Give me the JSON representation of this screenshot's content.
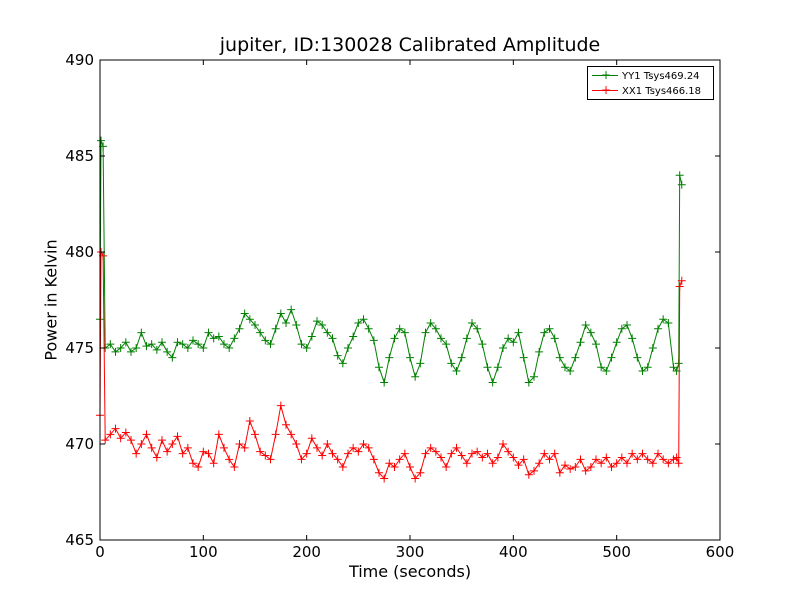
{
  "chart_data": {
    "type": "line",
    "title": "jupiter, ID:130028 Calibrated Amplitude",
    "xlabel": "Time (seconds)",
    "ylabel": "Power in Kelvin",
    "xlim": [
      0,
      600
    ],
    "ylim": [
      465,
      490
    ],
    "xticks": [
      "0",
      "100",
      "200",
      "300",
      "400",
      "500",
      "600"
    ],
    "yticks": [
      "465",
      "470",
      "475",
      "480",
      "485",
      "490"
    ],
    "grid": false,
    "legend_position": "top-right",
    "marker": "+",
    "series": [
      {
        "name": "YY1 Tsys469.24",
        "color": "#008000",
        "points": [
          [
            0,
            476.5
          ],
          [
            1,
            485.8
          ],
          [
            3,
            485.5
          ],
          [
            5,
            475.0
          ],
          [
            10,
            475.2
          ],
          [
            15,
            474.8
          ],
          [
            20,
            475.0
          ],
          [
            25,
            475.3
          ],
          [
            30,
            474.8
          ],
          [
            35,
            475.0
          ],
          [
            40,
            475.8
          ],
          [
            45,
            475.1
          ],
          [
            50,
            475.2
          ],
          [
            55,
            474.9
          ],
          [
            60,
            475.3
          ],
          [
            65,
            474.8
          ],
          [
            70,
            474.5
          ],
          [
            75,
            475.3
          ],
          [
            80,
            475.2
          ],
          [
            85,
            475.0
          ],
          [
            90,
            475.4
          ],
          [
            95,
            475.2
          ],
          [
            100,
            475.0
          ],
          [
            105,
            475.8
          ],
          [
            110,
            475.5
          ],
          [
            115,
            475.6
          ],
          [
            120,
            475.2
          ],
          [
            125,
            475.0
          ],
          [
            130,
            475.5
          ],
          [
            135,
            476.0
          ],
          [
            140,
            476.8
          ],
          [
            145,
            476.5
          ],
          [
            150,
            476.2
          ],
          [
            155,
            475.8
          ],
          [
            160,
            475.4
          ],
          [
            165,
            475.2
          ],
          [
            170,
            476.0
          ],
          [
            175,
            476.8
          ],
          [
            180,
            476.3
          ],
          [
            185,
            477.0
          ],
          [
            190,
            476.2
          ],
          [
            195,
            475.2
          ],
          [
            200,
            475.0
          ],
          [
            205,
            475.6
          ],
          [
            210,
            476.4
          ],
          [
            215,
            476.2
          ],
          [
            220,
            475.8
          ],
          [
            225,
            475.5
          ],
          [
            230,
            474.6
          ],
          [
            235,
            474.2
          ],
          [
            240,
            475.0
          ],
          [
            245,
            475.6
          ],
          [
            250,
            476.3
          ],
          [
            255,
            476.5
          ],
          [
            260,
            476.0
          ],
          [
            265,
            475.4
          ],
          [
            270,
            474.0
          ],
          [
            275,
            473.2
          ],
          [
            280,
            474.5
          ],
          [
            285,
            475.5
          ],
          [
            290,
            476.0
          ],
          [
            295,
            475.8
          ],
          [
            300,
            474.5
          ],
          [
            305,
            473.5
          ],
          [
            310,
            474.2
          ],
          [
            315,
            475.8
          ],
          [
            320,
            476.3
          ],
          [
            325,
            476.0
          ],
          [
            330,
            475.5
          ],
          [
            335,
            475.2
          ],
          [
            340,
            474.2
          ],
          [
            345,
            473.8
          ],
          [
            350,
            474.5
          ],
          [
            355,
            475.5
          ],
          [
            360,
            476.3
          ],
          [
            365,
            476.0
          ],
          [
            370,
            475.2
          ],
          [
            375,
            474.0
          ],
          [
            380,
            473.2
          ],
          [
            385,
            474.0
          ],
          [
            390,
            475.0
          ],
          [
            395,
            475.5
          ],
          [
            400,
            475.3
          ],
          [
            405,
            475.8
          ],
          [
            410,
            474.5
          ],
          [
            415,
            473.2
          ],
          [
            420,
            473.5
          ],
          [
            425,
            474.8
          ],
          [
            430,
            475.8
          ],
          [
            435,
            476.0
          ],
          [
            440,
            475.5
          ],
          [
            445,
            474.5
          ],
          [
            450,
            474.0
          ],
          [
            455,
            473.8
          ],
          [
            460,
            474.5
          ],
          [
            465,
            475.3
          ],
          [
            470,
            476.2
          ],
          [
            475,
            475.8
          ],
          [
            480,
            475.2
          ],
          [
            485,
            474.0
          ],
          [
            490,
            473.8
          ],
          [
            495,
            474.5
          ],
          [
            500,
            475.3
          ],
          [
            505,
            476.0
          ],
          [
            510,
            476.2
          ],
          [
            515,
            475.5
          ],
          [
            520,
            474.5
          ],
          [
            525,
            473.8
          ],
          [
            530,
            474.0
          ],
          [
            535,
            475.0
          ],
          [
            540,
            476.0
          ],
          [
            545,
            476.5
          ],
          [
            550,
            476.3
          ],
          [
            555,
            474.0
          ],
          [
            558,
            473.8
          ],
          [
            560,
            474.2
          ],
          [
            561,
            484.0
          ],
          [
            563,
            483.5
          ]
        ]
      },
      {
        "name": "XX1 Tsys466.18",
        "color": "#ff0000",
        "points": [
          [
            0,
            471.5
          ],
          [
            1,
            480.0
          ],
          [
            3,
            479.8
          ],
          [
            5,
            470.2
          ],
          [
            10,
            470.5
          ],
          [
            15,
            470.8
          ],
          [
            20,
            470.3
          ],
          [
            25,
            470.6
          ],
          [
            30,
            470.2
          ],
          [
            35,
            469.5
          ],
          [
            40,
            470.0
          ],
          [
            45,
            470.5
          ],
          [
            50,
            469.8
          ],
          [
            55,
            469.3
          ],
          [
            60,
            470.2
          ],
          [
            65,
            469.6
          ],
          [
            70,
            470.0
          ],
          [
            75,
            470.4
          ],
          [
            80,
            469.5
          ],
          [
            85,
            469.8
          ],
          [
            90,
            469.0
          ],
          [
            95,
            468.8
          ],
          [
            100,
            469.6
          ],
          [
            105,
            469.5
          ],
          [
            110,
            469.0
          ],
          [
            115,
            470.5
          ],
          [
            120,
            469.8
          ],
          [
            125,
            469.2
          ],
          [
            130,
            468.8
          ],
          [
            135,
            470.0
          ],
          [
            140,
            469.8
          ],
          [
            145,
            471.2
          ],
          [
            150,
            470.5
          ],
          [
            155,
            469.6
          ],
          [
            160,
            469.4
          ],
          [
            165,
            469.2
          ],
          [
            170,
            470.5
          ],
          [
            175,
            472.0
          ],
          [
            180,
            471.0
          ],
          [
            185,
            470.5
          ],
          [
            190,
            470.0
          ],
          [
            195,
            469.2
          ],
          [
            200,
            469.5
          ],
          [
            205,
            470.3
          ],
          [
            210,
            469.8
          ],
          [
            215,
            469.4
          ],
          [
            220,
            470.0
          ],
          [
            225,
            469.5
          ],
          [
            230,
            469.2
          ],
          [
            235,
            468.8
          ],
          [
            240,
            469.5
          ],
          [
            245,
            469.8
          ],
          [
            250,
            469.6
          ],
          [
            255,
            470.0
          ],
          [
            260,
            469.8
          ],
          [
            265,
            469.2
          ],
          [
            270,
            468.5
          ],
          [
            275,
            468.2
          ],
          [
            280,
            469.0
          ],
          [
            285,
            468.8
          ],
          [
            290,
            469.2
          ],
          [
            295,
            469.5
          ],
          [
            300,
            468.8
          ],
          [
            305,
            468.2
          ],
          [
            310,
            468.5
          ],
          [
            315,
            469.5
          ],
          [
            320,
            469.8
          ],
          [
            325,
            469.6
          ],
          [
            330,
            469.3
          ],
          [
            335,
            468.8
          ],
          [
            340,
            469.5
          ],
          [
            345,
            469.8
          ],
          [
            350,
            469.4
          ],
          [
            355,
            469.0
          ],
          [
            360,
            469.5
          ],
          [
            365,
            469.6
          ],
          [
            370,
            469.3
          ],
          [
            375,
            469.5
          ],
          [
            380,
            469.0
          ],
          [
            385,
            469.3
          ],
          [
            390,
            470.0
          ],
          [
            395,
            469.6
          ],
          [
            400,
            469.3
          ],
          [
            405,
            468.9
          ],
          [
            410,
            469.2
          ],
          [
            415,
            468.4
          ],
          [
            420,
            468.6
          ],
          [
            425,
            469.0
          ],
          [
            430,
            469.5
          ],
          [
            435,
            469.2
          ],
          [
            440,
            469.5
          ],
          [
            445,
            468.5
          ],
          [
            450,
            468.9
          ],
          [
            455,
            468.7
          ],
          [
            460,
            468.8
          ],
          [
            465,
            469.2
          ],
          [
            470,
            468.6
          ],
          [
            475,
            468.8
          ],
          [
            480,
            469.2
          ],
          [
            485,
            469.0
          ],
          [
            490,
            469.3
          ],
          [
            495,
            468.8
          ],
          [
            500,
            469.0
          ],
          [
            505,
            469.3
          ],
          [
            510,
            469.0
          ],
          [
            515,
            469.5
          ],
          [
            520,
            469.2
          ],
          [
            525,
            469.5
          ],
          [
            530,
            469.2
          ],
          [
            535,
            469.0
          ],
          [
            540,
            469.5
          ],
          [
            545,
            469.2
          ],
          [
            550,
            469.0
          ],
          [
            555,
            469.2
          ],
          [
            558,
            469.3
          ],
          [
            560,
            469.0
          ],
          [
            561,
            478.2
          ],
          [
            563,
            478.5
          ]
        ]
      }
    ]
  }
}
